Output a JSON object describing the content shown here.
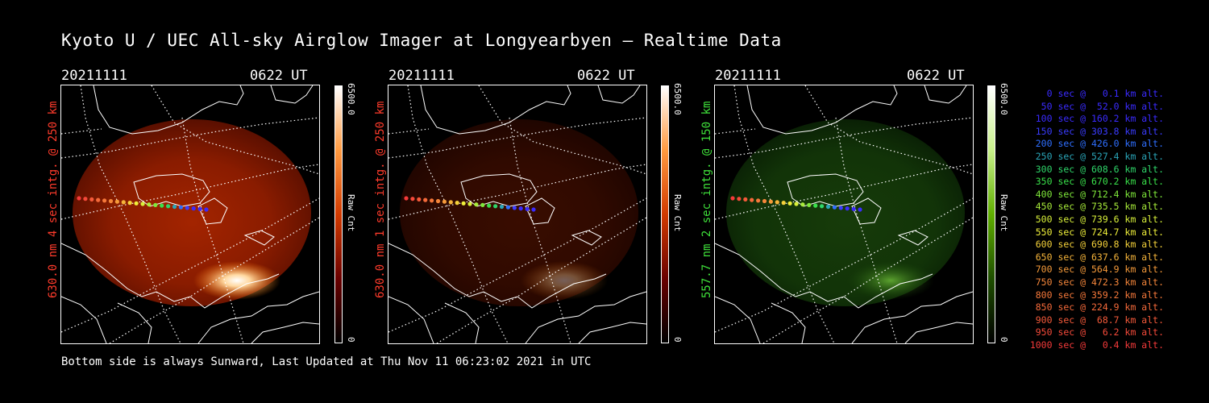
{
  "title": "Kyoto U / UEC All-sky Airglow Imager at Longyearbyen — Realtime Data",
  "panels": [
    {
      "date": "20211111",
      "time": "0622 UT",
      "ylabel": "630.0 nm  4 sec intg. @ 250 km",
      "label_color": "#ff3b2b",
      "cbar_max": "6500.0",
      "cbar_min": "0",
      "cbar_label": "Raw Cnt",
      "channel": "red",
      "brightness": 1.0
    },
    {
      "date": "20211111",
      "time": "0622 UT",
      "ylabel": "630.0 nm  1 sec intg. @ 250 km",
      "label_color": "#ff3b2b",
      "cbar_max": "6500.0",
      "cbar_min": "0",
      "cbar_label": "Raw Cnt",
      "channel": "red",
      "brightness": 0.35
    },
    {
      "date": "20211111",
      "time": "0622 UT",
      "ylabel": "557.7 nm  2 sec intg. @ 150 km",
      "label_color": "#3fe03a",
      "cbar_max": "6500.0",
      "cbar_min": "0",
      "cbar_label": "Raw Cnt",
      "channel": "green",
      "brightness": 0.8
    }
  ],
  "footer": "Bottom side is always Sunward, Last Updated at Thu Nov 11 06:23:02 2021 in UTC",
  "legend": [
    {
      "text": "0 sec @   0.1 km alt.",
      "color": "#3a2bff"
    },
    {
      "text": "50 sec @  52.0 km alt.",
      "color": "#3a2bff"
    },
    {
      "text": "100 sec @ 160.2 km alt.",
      "color": "#3a2bff"
    },
    {
      "text": "150 sec @ 303.8 km alt.",
      "color": "#3a3cff"
    },
    {
      "text": "200 sec @ 426.0 km alt.",
      "color": "#2f6fff"
    },
    {
      "text": "250 sec @ 527.4 km alt.",
      "color": "#2aa5b8"
    },
    {
      "text": "300 sec @ 608.6 km alt.",
      "color": "#2fd66a"
    },
    {
      "text": "350 sec @ 670.2 km alt.",
      "color": "#39e04a"
    },
    {
      "text": "400 sec @ 712.4 km alt.",
      "color": "#7fe83a"
    },
    {
      "text": "450 sec @ 735.5 km alt.",
      "color": "#a8ec3a"
    },
    {
      "text": "500 sec @ 739.6 km alt.",
      "color": "#d8f03a"
    },
    {
      "text": "550 sec @ 724.7 km alt.",
      "color": "#f0f03a"
    },
    {
      "text": "600 sec @ 690.8 km alt.",
      "color": "#f5d23a"
    },
    {
      "text": "650 sec @ 637.6 km alt.",
      "color": "#f5b43a"
    },
    {
      "text": "700 sec @ 564.9 km alt.",
      "color": "#f59a3a"
    },
    {
      "text": "750 sec @ 472.3 km alt.",
      "color": "#f5863a"
    },
    {
      "text": "800 sec @ 359.2 km alt.",
      "color": "#f5783a"
    },
    {
      "text": "850 sec @ 224.9 km alt.",
      "color": "#f56a3a"
    },
    {
      "text": "900 sec @  68.7 km alt.",
      "color": "#f55a3a"
    },
    {
      "text": "950 sec @   6.2 km alt.",
      "color": "#f54a3a"
    },
    {
      "text": "1000 sec @   0.4 km alt.",
      "color": "#f53a3a"
    }
  ]
}
